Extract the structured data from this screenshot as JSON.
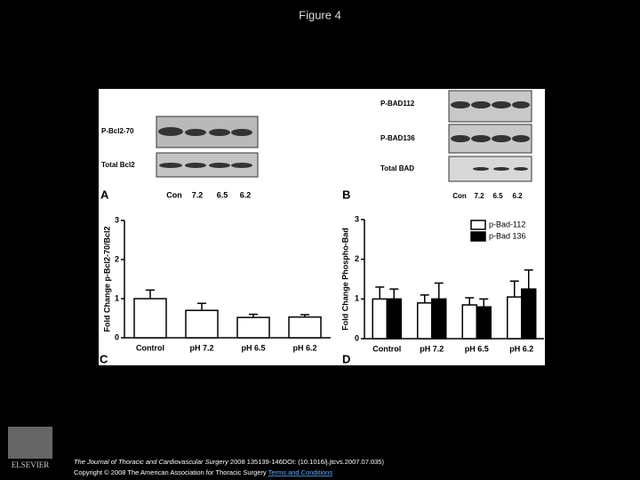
{
  "slide_title": "Figure 4",
  "blot_a": {
    "panel": "A",
    "rows": [
      "P-Bcl2-70",
      "Total Bcl2"
    ],
    "lanes": [
      "Con",
      "7.2",
      "6.5",
      "6.2"
    ]
  },
  "blot_b": {
    "panel": "B",
    "rows": [
      "P-BAD112",
      "P-BAD136",
      "Total BAD"
    ],
    "lanes": [
      "Con",
      "7.2",
      "6.5",
      "6.2"
    ]
  },
  "chart_data": [
    {
      "type": "bar",
      "panel": "C",
      "y_label": "Fold Change p-Bcl2-70/Bcl2",
      "categories": [
        "Control",
        "pH 7.2",
        "pH 6.5",
        "pH 6.2"
      ],
      "values": [
        1.0,
        0.7,
        0.52,
        0.53
      ],
      "errors": [
        0.22,
        0.18,
        0.08,
        0.06
      ],
      "color": "#ffffff",
      "ylim": [
        0,
        3
      ],
      "yticks": [
        0,
        1,
        2,
        3
      ]
    },
    {
      "type": "bar",
      "panel": "D",
      "y_label": "Fold Change Phospho-Bad",
      "categories": [
        "Control",
        "pH 7.2",
        "pH 6.5",
        "pH 6.2"
      ],
      "series": [
        {
          "name": "p-Bad-112",
          "color": "#ffffff",
          "values": [
            1.0,
            0.9,
            0.85,
            1.05
          ],
          "errors": [
            0.3,
            0.2,
            0.18,
            0.4
          ]
        },
        {
          "name": "p-Bad 136",
          "color": "#000000",
          "values": [
            1.0,
            1.0,
            0.8,
            1.25
          ],
          "errors": [
            0.25,
            0.4,
            0.2,
            0.48
          ]
        }
      ],
      "ylim": [
        0,
        3
      ],
      "yticks": [
        0,
        1,
        2,
        3
      ],
      "legend": "top-right"
    }
  ],
  "footer": {
    "journal": "The Journal of Thoracic and Cardiovascular Surgery",
    "citation": " 2008 135139-146DOI: (10.1016/j.jtcvs.2007.07.035)",
    "copyright": "Copyright © 2008 The American Association for Thoracic Surgery ",
    "link": "Terms and Conditions",
    "logo": "ELSEVIER"
  }
}
